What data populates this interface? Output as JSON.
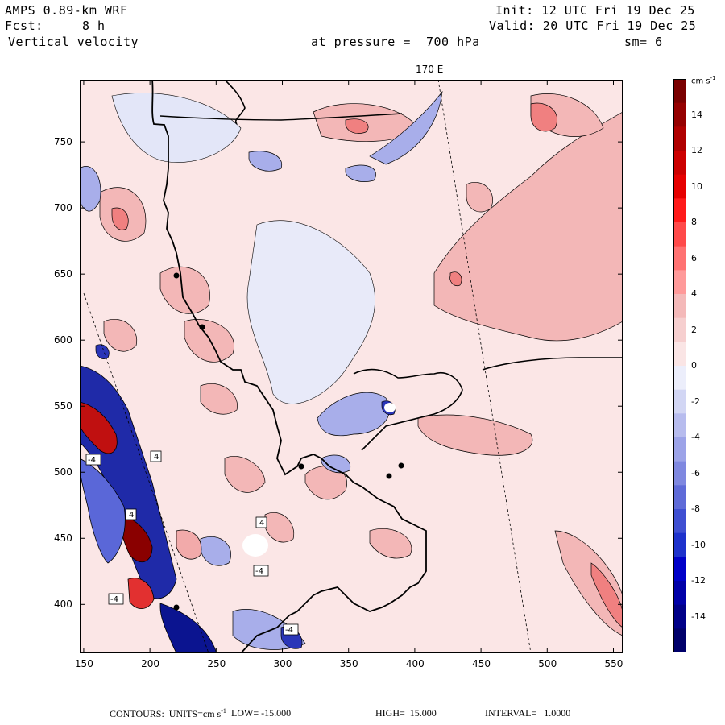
{
  "header": {
    "model": "AMPS 0.89-km WRF",
    "init": "Init: 12 UTC Fri 19 Dec 25",
    "fcst_label": "Fcst:",
    "fcst_value": "8 h",
    "valid": "Valid: 20 UTC Fri 19 Dec 25",
    "field": "Vertical velocity",
    "pressure": "at pressure =  700 hPa",
    "smooth": "sm= 6"
  },
  "map": {
    "meridian_label": "170 E",
    "x_ticks": [
      "150",
      "200",
      "250",
      "300",
      "350",
      "400",
      "450",
      "500",
      "550"
    ],
    "y_ticks": [
      "750",
      "700",
      "650",
      "600",
      "550",
      "500",
      "450",
      "400"
    ],
    "x_range": [
      147,
      557
    ],
    "y_range": [
      363,
      797
    ],
    "contour_labels": [
      "4",
      "4",
      "-4",
      "-4",
      "-4",
      "4",
      "-4"
    ]
  },
  "colorbar": {
    "units_label": "cm s",
    "units_exp": "-1",
    "ticks": [
      "14",
      "12",
      "10",
      "8",
      "6",
      "4",
      "2",
      "0",
      "-2",
      "-4",
      "-6",
      "-8",
      "-10",
      "-12",
      "-14"
    ],
    "colors": [
      "#7a0000",
      "#950000",
      "#b00000",
      "#cc0000",
      "#e60000",
      "#ff1a1a",
      "#ff4a4a",
      "#ff7272",
      "#ff9a9a",
      "#f4b9b9",
      "#f6cfcf",
      "#fae5e5",
      "#eceefb",
      "#d2d6f4",
      "#b7bcee",
      "#9ca3e8",
      "#7f88e0",
      "#5f6bd8",
      "#3f4fd2",
      "#1e32cc",
      "#0000c8",
      "#0000a8",
      "#000088",
      "#00006a"
    ]
  },
  "footer": {
    "contours": "CONTOURS:  UNITS=cm s",
    "units_exp": "-1",
    "low": "LOW= -15.000",
    "high": "HIGH=  15.000",
    "interval": "INTERVAL=   1.0000"
  }
}
